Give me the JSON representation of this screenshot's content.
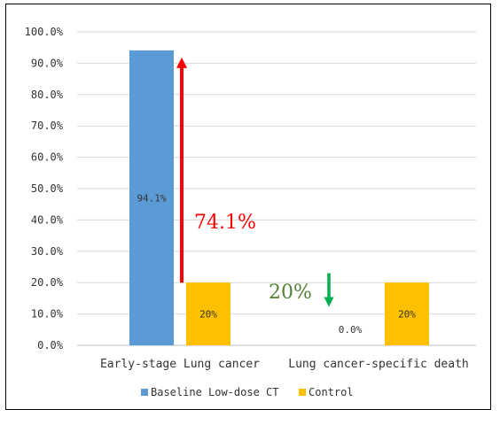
{
  "chart_data": {
    "type": "bar",
    "categories": [
      "Early-stage Lung cancer",
      "Lung cancer-specific death"
    ],
    "series": [
      {
        "name": "Baseline Low-dose CT",
        "values": [
          94.1,
          0.0
        ],
        "data_labels": [
          "94.1%",
          "0.0%"
        ],
        "color": "#5b9bd5"
      },
      {
        "name": "Control",
        "values": [
          20,
          20
        ],
        "data_labels": [
          "20%",
          "20%"
        ],
        "color": "#ffc000"
      }
    ],
    "ylim": [
      0,
      100
    ],
    "yticks": [
      "0.0%",
      "10.0%",
      "20.0%",
      "30.0%",
      "40.0%",
      "50.0%",
      "60.0%",
      "70.0%",
      "80.0%",
      "90.0%",
      "100.0%"
    ],
    "grid": true,
    "legend_position": "bottom",
    "annotations": [
      {
        "text": "74.1%",
        "color": "#ff0000",
        "arrow_color": "#ff0000",
        "arrow_direction": "up",
        "category": 0,
        "from": 20,
        "to": 94.1
      },
      {
        "text": "20%",
        "color": "#548235",
        "arrow_color": "#00b050",
        "arrow_direction": "down",
        "category": 1,
        "from": 23,
        "to": 11
      }
    ]
  }
}
